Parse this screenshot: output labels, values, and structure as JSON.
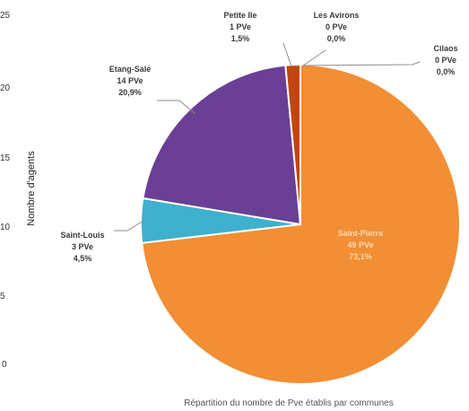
{
  "chart_data": {
    "type": "pie",
    "title": "",
    "caption": "Répartition du nombre de Pve établis par communes",
    "ylabel": "Nombre d'agents",
    "y_ticks": [
      "25",
      "20",
      "15",
      "10",
      "5",
      "0"
    ],
    "slices": [
      {
        "name": "Saint-Pierre",
        "count_label": "49 PVe",
        "pct_label": "73,1%",
        "value": 49,
        "percent": 73.1,
        "color": "#f28e34"
      },
      {
        "name": "Saint-Louis",
        "count_label": "3 PVe",
        "pct_label": "4,5%",
        "value": 3,
        "percent": 4.5,
        "color": "#3fb0cd"
      },
      {
        "name": "Etang-Salé",
        "count_label": "14 PVe",
        "pct_label": "20,9%",
        "value": 14,
        "percent": 20.9,
        "color": "#6a3f95"
      },
      {
        "name": "Petite Ile",
        "count_label": "1 PVe",
        "pct_label": "1,5%",
        "value": 1,
        "percent": 1.5,
        "color": "#c0470f"
      },
      {
        "name": "Les Avirons",
        "count_label": "0 PVe",
        "pct_label": "0,0%",
        "value": 0,
        "percent": 0.0,
        "color": "#8c8c8c"
      },
      {
        "name": "Cilaos",
        "count_label": "0 PVe",
        "pct_label": "0,0%",
        "value": 0,
        "percent": 0.0,
        "color": "#8c8c8c"
      }
    ]
  }
}
